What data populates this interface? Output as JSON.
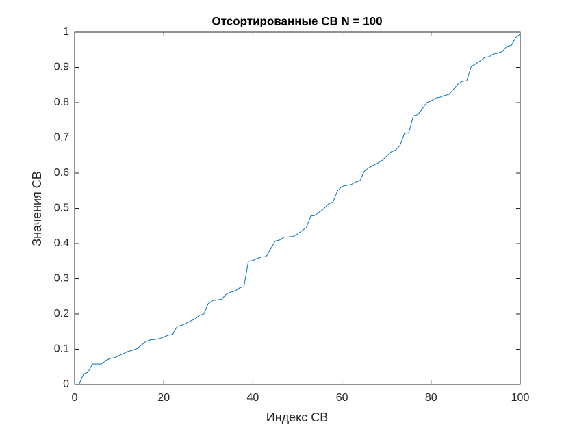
{
  "chart_data": {
    "type": "line",
    "title": "Отсортированные СВ N = 100",
    "xlabel": "Индекс СВ",
    "ylabel": "Значения СВ",
    "color": "#0072bd",
    "x": [
      1,
      2,
      3,
      4,
      5,
      6,
      7,
      8,
      9,
      10,
      11,
      12,
      13,
      14,
      15,
      16,
      17,
      18,
      19,
      20,
      21,
      22,
      23,
      24,
      25,
      26,
      27,
      28,
      29,
      30,
      31,
      32,
      33,
      34,
      35,
      36,
      37,
      38,
      39,
      40,
      41,
      42,
      43,
      44,
      45,
      46,
      47,
      48,
      49,
      50,
      51,
      52,
      53,
      54,
      55,
      56,
      57,
      58,
      59,
      60,
      61,
      62,
      63,
      64,
      65,
      66,
      67,
      68,
      69,
      70,
      71,
      72,
      73,
      74,
      75,
      76,
      77,
      78,
      79,
      80,
      81,
      82,
      83,
      84,
      85,
      86,
      87,
      88,
      89,
      90,
      91,
      92,
      93,
      94,
      95,
      96,
      97,
      98,
      99,
      100
    ],
    "values": [
      0.0,
      0.03,
      0.035,
      0.058,
      0.058,
      0.058,
      0.068,
      0.074,
      0.076,
      0.082,
      0.088,
      0.094,
      0.097,
      0.102,
      0.112,
      0.122,
      0.127,
      0.128,
      0.13,
      0.135,
      0.14,
      0.142,
      0.165,
      0.168,
      0.174,
      0.18,
      0.186,
      0.196,
      0.2,
      0.23,
      0.238,
      0.24,
      0.242,
      0.256,
      0.262,
      0.265,
      0.274,
      0.278,
      0.35,
      0.352,
      0.358,
      0.362,
      0.363,
      0.385,
      0.407,
      0.41,
      0.418,
      0.419,
      0.42,
      0.427,
      0.436,
      0.445,
      0.478,
      0.48,
      0.49,
      0.5,
      0.513,
      0.518,
      0.55,
      0.562,
      0.565,
      0.567,
      0.574,
      0.578,
      0.605,
      0.615,
      0.622,
      0.628,
      0.636,
      0.648,
      0.66,
      0.665,
      0.678,
      0.712,
      0.715,
      0.762,
      0.766,
      0.782,
      0.8,
      0.805,
      0.813,
      0.815,
      0.82,
      0.823,
      0.837,
      0.852,
      0.86,
      0.862,
      0.902,
      0.91,
      0.918,
      0.928,
      0.93,
      0.938,
      0.94,
      0.945,
      0.96,
      0.962,
      0.985,
      0.995
    ],
    "xlim": [
      0,
      100
    ],
    "xticks": [
      0,
      20,
      40,
      60,
      80,
      100
    ],
    "ylim": [
      0,
      1
    ],
    "yticks": [
      0,
      0.1,
      0.2,
      0.3,
      0.4,
      0.5,
      0.6,
      0.7,
      0.8,
      0.9,
      1
    ],
    "grid": false
  }
}
